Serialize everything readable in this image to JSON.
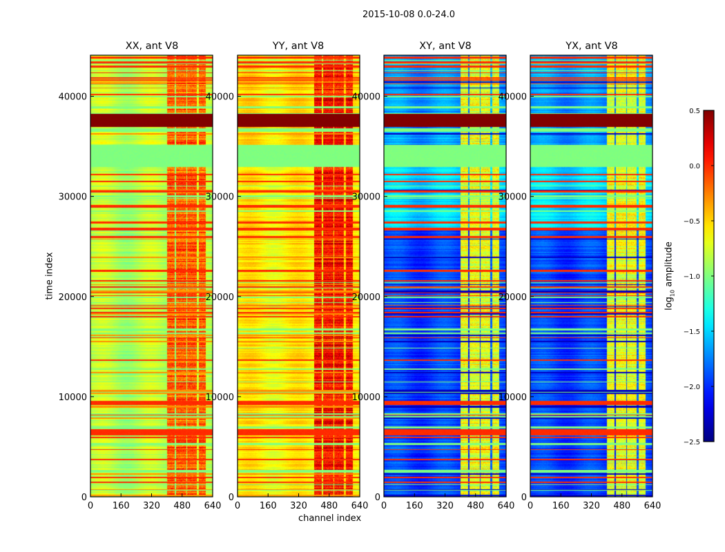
{
  "chart_data": {
    "type": "heatmap",
    "title": "2015-10-08 0.0-24.0",
    "xlabel": "channel index",
    "ylabel": "time index",
    "xlim": [
      0,
      640
    ],
    "ylim": [
      0,
      44100
    ],
    "xticks": [
      "0",
      "160",
      "320",
      "480",
      "640"
    ],
    "yticks": [
      "0",
      "10000",
      "20000",
      "30000",
      "40000"
    ],
    "colorbar": {
      "label": "log10 amplitude",
      "label_main": "log",
      "label_sub": "10",
      "label_rest": " amplitude",
      "range": [
        -2.5,
        0.5
      ],
      "ticks": [
        "0.5",
        "0.0",
        "−0.5",
        "−1.0",
        "−1.5",
        "−2.0",
        "−2.5"
      ],
      "colormap": "jet"
    },
    "panels": [
      {
        "title": "XX, ant V8",
        "base": -0.85,
        "active_channels_value": -0.15,
        "top_region_value": -0.8
      },
      {
        "title": "YY, ant V8",
        "base": -0.6,
        "active_channels_value": 0.1,
        "top_region_value": -0.55
      },
      {
        "title": "XY, ant V8",
        "base": -1.95,
        "active_channels_value": -0.7,
        "top_region_value": -1.7
      },
      {
        "title": "YX, ant V8",
        "base": -1.95,
        "active_channels_value": -0.7,
        "top_region_value": -1.7
      }
    ],
    "active_channel_blocks": [
      [
        400,
        440
      ],
      [
        448,
        500
      ],
      [
        506,
        556
      ],
      [
        566,
        602
      ]
    ],
    "bands": [
      {
        "t": [
          37000,
          38300
        ],
        "value": 0.5
      },
      {
        "t": [
          33000,
          35200
        ],
        "value": -1.0
      },
      {
        "t": [
          36500,
          36800
        ],
        "value": -1.0
      },
      {
        "t": [
          9200,
          9600
        ],
        "value": 0.0
      },
      {
        "t": [
          6200,
          6800
        ],
        "value": 0.0
      }
    ]
  }
}
